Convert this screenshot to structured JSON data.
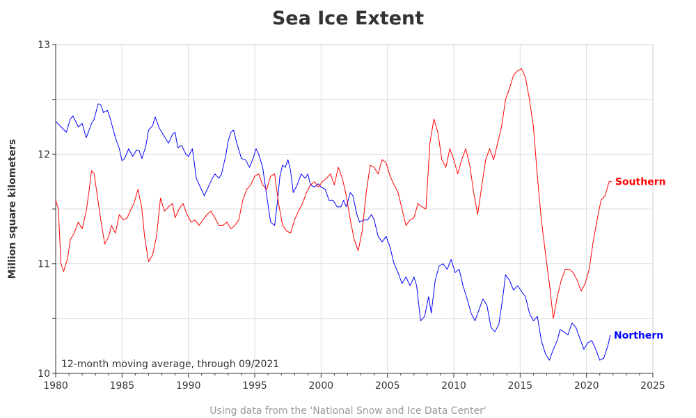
{
  "chart_data": {
    "type": "line",
    "title": "Sea Ice Extent",
    "xlabel": "",
    "ylabel": "Million square kilometers",
    "xlim": [
      1980,
      2025
    ],
    "ylim": [
      10,
      13
    ],
    "x_ticks": [
      1980,
      1985,
      1990,
      1995,
      2000,
      2005,
      2010,
      2015,
      2020,
      2025
    ],
    "y_ticks": [
      10,
      11,
      12,
      13
    ],
    "grid": true,
    "note": "12-month moving average, through 09/2021",
    "caption": "Using data from the 'National Snow and Ice Data Center'",
    "series": [
      {
        "name": "Northern",
        "color": "#0000ff",
        "points": [
          [
            1980.0,
            12.3
          ],
          [
            1980.4,
            12.25
          ],
          [
            1980.8,
            12.2
          ],
          [
            1981.1,
            12.32
          ],
          [
            1981.3,
            12.35
          ],
          [
            1981.7,
            12.25
          ],
          [
            1982.0,
            12.28
          ],
          [
            1982.3,
            12.15
          ],
          [
            1982.7,
            12.28
          ],
          [
            1982.9,
            12.32
          ],
          [
            1983.2,
            12.46
          ],
          [
            1983.4,
            12.45
          ],
          [
            1983.6,
            12.38
          ],
          [
            1983.9,
            12.4
          ],
          [
            1984.1,
            12.33
          ],
          [
            1984.5,
            12.15
          ],
          [
            1984.8,
            12.05
          ],
          [
            1985.0,
            11.94
          ],
          [
            1985.2,
            11.96
          ],
          [
            1985.5,
            12.05
          ],
          [
            1985.8,
            11.98
          ],
          [
            1986.1,
            12.04
          ],
          [
            1986.3,
            12.03
          ],
          [
            1986.5,
            11.96
          ],
          [
            1986.8,
            12.08
          ],
          [
            1987.0,
            12.22
          ],
          [
            1987.3,
            12.26
          ],
          [
            1987.5,
            12.34
          ],
          [
            1987.8,
            12.24
          ],
          [
            1988.0,
            12.2
          ],
          [
            1988.2,
            12.16
          ],
          [
            1988.5,
            12.1
          ],
          [
            1988.8,
            12.18
          ],
          [
            1989.0,
            12.2
          ],
          [
            1989.2,
            12.06
          ],
          [
            1989.5,
            12.08
          ],
          [
            1989.8,
            12.0
          ],
          [
            1990.0,
            11.98
          ],
          [
            1990.3,
            12.05
          ],
          [
            1990.6,
            11.78
          ],
          [
            1990.9,
            11.7
          ],
          [
            1991.2,
            11.62
          ],
          [
            1991.5,
            11.7
          ],
          [
            1991.8,
            11.78
          ],
          [
            1992.0,
            11.82
          ],
          [
            1992.3,
            11.78
          ],
          [
            1992.5,
            11.82
          ],
          [
            1992.8,
            11.98
          ],
          [
            1993.0,
            12.12
          ],
          [
            1993.2,
            12.2
          ],
          [
            1993.4,
            12.22
          ],
          [
            1993.7,
            12.08
          ],
          [
            1994.0,
            11.96
          ],
          [
            1994.3,
            11.95
          ],
          [
            1994.6,
            11.88
          ],
          [
            1994.9,
            11.97
          ],
          [
            1995.1,
            12.05
          ],
          [
            1995.3,
            12.0
          ],
          [
            1995.6,
            11.88
          ],
          [
            1995.9,
            11.62
          ],
          [
            1996.2,
            11.38
          ],
          [
            1996.5,
            11.35
          ],
          [
            1996.7,
            11.55
          ],
          [
            1996.9,
            11.8
          ],
          [
            1997.1,
            11.9
          ],
          [
            1997.3,
            11.88
          ],
          [
            1997.5,
            11.95
          ],
          [
            1997.7,
            11.85
          ],
          [
            1997.9,
            11.65
          ],
          [
            1998.2,
            11.72
          ],
          [
            1998.5,
            11.82
          ],
          [
            1998.8,
            11.78
          ],
          [
            1999.0,
            11.82
          ],
          [
            1999.2,
            11.72
          ],
          [
            1999.5,
            11.7
          ],
          [
            1999.8,
            11.73
          ],
          [
            2000.0,
            11.7
          ],
          [
            2000.3,
            11.68
          ],
          [
            2000.6,
            11.58
          ],
          [
            2000.9,
            11.58
          ],
          [
            2001.2,
            11.52
          ],
          [
            2001.5,
            11.52
          ],
          [
            2001.7,
            11.58
          ],
          [
            2001.9,
            11.52
          ],
          [
            2002.2,
            11.65
          ],
          [
            2002.4,
            11.62
          ],
          [
            2002.7,
            11.45
          ],
          [
            2002.9,
            11.38
          ],
          [
            2003.2,
            11.4
          ],
          [
            2003.5,
            11.4
          ],
          [
            2003.8,
            11.45
          ],
          [
            2004.0,
            11.4
          ],
          [
            2004.3,
            11.25
          ],
          [
            2004.6,
            11.2
          ],
          [
            2004.9,
            11.25
          ],
          [
            2005.2,
            11.15
          ],
          [
            2005.5,
            11.0
          ],
          [
            2005.8,
            10.92
          ],
          [
            2006.1,
            10.82
          ],
          [
            2006.4,
            10.88
          ],
          [
            2006.7,
            10.8
          ],
          [
            2007.0,
            10.88
          ],
          [
            2007.2,
            10.8
          ],
          [
            2007.5,
            10.48
          ],
          [
            2007.8,
            10.52
          ],
          [
            2008.1,
            10.7
          ],
          [
            2008.3,
            10.55
          ],
          [
            2008.6,
            10.85
          ],
          [
            2008.9,
            10.98
          ],
          [
            2009.2,
            11.0
          ],
          [
            2009.5,
            10.95
          ],
          [
            2009.8,
            11.04
          ],
          [
            2010.1,
            10.92
          ],
          [
            2010.4,
            10.95
          ],
          [
            2010.7,
            10.8
          ],
          [
            2011.0,
            10.68
          ],
          [
            2011.3,
            10.55
          ],
          [
            2011.6,
            10.48
          ],
          [
            2011.9,
            10.58
          ],
          [
            2012.2,
            10.68
          ],
          [
            2012.5,
            10.62
          ],
          [
            2012.8,
            10.42
          ],
          [
            2013.1,
            10.38
          ],
          [
            2013.4,
            10.45
          ],
          [
            2013.7,
            10.7
          ],
          [
            2013.9,
            10.9
          ],
          [
            2014.2,
            10.85
          ],
          [
            2014.5,
            10.76
          ],
          [
            2014.8,
            10.8
          ],
          [
            2015.1,
            10.75
          ],
          [
            2015.4,
            10.7
          ],
          [
            2015.7,
            10.55
          ],
          [
            2016.0,
            10.48
          ],
          [
            2016.3,
            10.52
          ],
          [
            2016.6,
            10.3
          ],
          [
            2016.9,
            10.18
          ],
          [
            2017.2,
            10.12
          ],
          [
            2017.5,
            10.22
          ],
          [
            2017.8,
            10.3
          ],
          [
            2018.0,
            10.4
          ],
          [
            2018.3,
            10.38
          ],
          [
            2018.6,
            10.35
          ],
          [
            2018.9,
            10.46
          ],
          [
            2019.2,
            10.42
          ],
          [
            2019.5,
            10.32
          ],
          [
            2019.8,
            10.22
          ],
          [
            2020.1,
            10.28
          ],
          [
            2020.4,
            10.3
          ],
          [
            2020.7,
            10.22
          ],
          [
            2021.0,
            10.12
          ],
          [
            2021.3,
            10.14
          ],
          [
            2021.6,
            10.25
          ],
          [
            2021.8,
            10.35
          ]
        ]
      },
      {
        "name": "Southern",
        "color": "#ff0000",
        "points": [
          [
            1980.0,
            11.58
          ],
          [
            1980.2,
            11.5
          ],
          [
            1980.4,
            11.0
          ],
          [
            1980.6,
            10.93
          ],
          [
            1980.9,
            11.05
          ],
          [
            1981.1,
            11.22
          ],
          [
            1981.4,
            11.28
          ],
          [
            1981.7,
            11.38
          ],
          [
            1982.0,
            11.32
          ],
          [
            1982.3,
            11.48
          ],
          [
            1982.5,
            11.65
          ],
          [
            1982.7,
            11.85
          ],
          [
            1982.9,
            11.82
          ],
          [
            1983.1,
            11.65
          ],
          [
            1983.4,
            11.4
          ],
          [
            1983.7,
            11.18
          ],
          [
            1984.0,
            11.25
          ],
          [
            1984.2,
            11.35
          ],
          [
            1984.5,
            11.28
          ],
          [
            1984.8,
            11.45
          ],
          [
            1985.1,
            11.4
          ],
          [
            1985.4,
            11.42
          ],
          [
            1985.6,
            11.48
          ],
          [
            1985.9,
            11.55
          ],
          [
            1986.2,
            11.68
          ],
          [
            1986.5,
            11.5
          ],
          [
            1986.7,
            11.25
          ],
          [
            1987.0,
            11.02
          ],
          [
            1987.3,
            11.08
          ],
          [
            1987.6,
            11.25
          ],
          [
            1987.9,
            11.6
          ],
          [
            1988.2,
            11.48
          ],
          [
            1988.5,
            11.52
          ],
          [
            1988.8,
            11.55
          ],
          [
            1989.0,
            11.42
          ],
          [
            1989.3,
            11.5
          ],
          [
            1989.6,
            11.55
          ],
          [
            1989.9,
            11.45
          ],
          [
            1990.2,
            11.38
          ],
          [
            1990.5,
            11.4
          ],
          [
            1990.8,
            11.35
          ],
          [
            1991.1,
            11.4
          ],
          [
            1991.4,
            11.45
          ],
          [
            1991.7,
            11.48
          ],
          [
            1992.0,
            11.42
          ],
          [
            1992.3,
            11.35
          ],
          [
            1992.6,
            11.35
          ],
          [
            1992.9,
            11.38
          ],
          [
            1993.2,
            11.32
          ],
          [
            1993.5,
            11.35
          ],
          [
            1993.8,
            11.4
          ],
          [
            1994.1,
            11.58
          ],
          [
            1994.4,
            11.68
          ],
          [
            1994.7,
            11.72
          ],
          [
            1995.0,
            11.8
          ],
          [
            1995.3,
            11.82
          ],
          [
            1995.6,
            11.72
          ],
          [
            1995.9,
            11.68
          ],
          [
            1996.2,
            11.8
          ],
          [
            1996.5,
            11.82
          ],
          [
            1996.8,
            11.55
          ],
          [
            1997.1,
            11.35
          ],
          [
            1997.4,
            11.3
          ],
          [
            1997.7,
            11.28
          ],
          [
            1998.0,
            11.4
          ],
          [
            1998.3,
            11.48
          ],
          [
            1998.6,
            11.55
          ],
          [
            1998.9,
            11.65
          ],
          [
            1999.2,
            11.72
          ],
          [
            1999.5,
            11.75
          ],
          [
            1999.8,
            11.7
          ],
          [
            2000.1,
            11.75
          ],
          [
            2000.4,
            11.78
          ],
          [
            2000.7,
            11.82
          ],
          [
            2001.0,
            11.72
          ],
          [
            2001.3,
            11.88
          ],
          [
            2001.6,
            11.78
          ],
          [
            2001.9,
            11.62
          ],
          [
            2002.2,
            11.4
          ],
          [
            2002.5,
            11.22
          ],
          [
            2002.8,
            11.12
          ],
          [
            2003.1,
            11.3
          ],
          [
            2003.4,
            11.65
          ],
          [
            2003.7,
            11.9
          ],
          [
            2004.0,
            11.88
          ],
          [
            2004.3,
            11.82
          ],
          [
            2004.6,
            11.95
          ],
          [
            2004.9,
            11.92
          ],
          [
            2005.2,
            11.8
          ],
          [
            2005.5,
            11.72
          ],
          [
            2005.8,
            11.65
          ],
          [
            2006.1,
            11.5
          ],
          [
            2006.4,
            11.35
          ],
          [
            2006.7,
            11.4
          ],
          [
            2007.0,
            11.42
          ],
          [
            2007.3,
            11.55
          ],
          [
            2007.6,
            11.52
          ],
          [
            2007.9,
            11.5
          ],
          [
            2008.2,
            12.1
          ],
          [
            2008.5,
            12.32
          ],
          [
            2008.8,
            12.2
          ],
          [
            2009.1,
            11.95
          ],
          [
            2009.4,
            11.88
          ],
          [
            2009.7,
            12.05
          ],
          [
            2010.0,
            11.95
          ],
          [
            2010.3,
            11.82
          ],
          [
            2010.6,
            11.95
          ],
          [
            2010.9,
            12.05
          ],
          [
            2011.2,
            11.9
          ],
          [
            2011.5,
            11.65
          ],
          [
            2011.8,
            11.45
          ],
          [
            2012.1,
            11.7
          ],
          [
            2012.4,
            11.95
          ],
          [
            2012.7,
            12.05
          ],
          [
            2013.0,
            11.95
          ],
          [
            2013.3,
            12.1
          ],
          [
            2013.6,
            12.25
          ],
          [
            2013.9,
            12.5
          ],
          [
            2014.2,
            12.6
          ],
          [
            2014.5,
            12.72
          ],
          [
            2014.8,
            12.76
          ],
          [
            2015.1,
            12.78
          ],
          [
            2015.4,
            12.7
          ],
          [
            2015.7,
            12.5
          ],
          [
            2016.0,
            12.25
          ],
          [
            2016.3,
            11.8
          ],
          [
            2016.6,
            11.4
          ],
          [
            2016.9,
            11.1
          ],
          [
            2017.2,
            10.82
          ],
          [
            2017.5,
            10.5
          ],
          [
            2017.8,
            10.7
          ],
          [
            2018.1,
            10.85
          ],
          [
            2018.4,
            10.95
          ],
          [
            2018.7,
            10.95
          ],
          [
            2019.0,
            10.92
          ],
          [
            2019.3,
            10.85
          ],
          [
            2019.6,
            10.75
          ],
          [
            2019.9,
            10.82
          ],
          [
            2020.2,
            10.95
          ],
          [
            2020.5,
            11.2
          ],
          [
            2020.8,
            11.4
          ],
          [
            2021.1,
            11.58
          ],
          [
            2021.4,
            11.62
          ],
          [
            2021.7,
            11.75
          ],
          [
            2021.9,
            11.75
          ]
        ]
      }
    ]
  }
}
